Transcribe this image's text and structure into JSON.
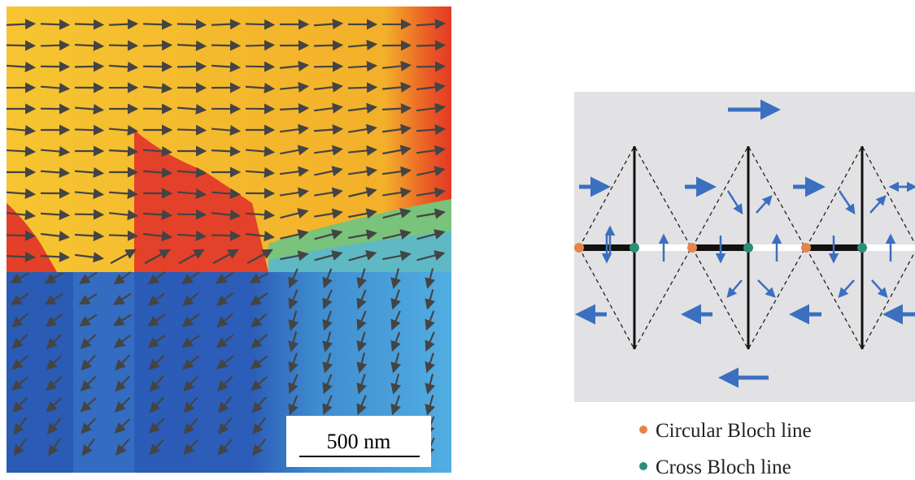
{
  "scale_bar": {
    "label": "500 nm"
  },
  "legend": {
    "items": [
      {
        "label": "Circular Bloch line"
      },
      {
        "label": "Cross Bloch line"
      }
    ]
  }
}
